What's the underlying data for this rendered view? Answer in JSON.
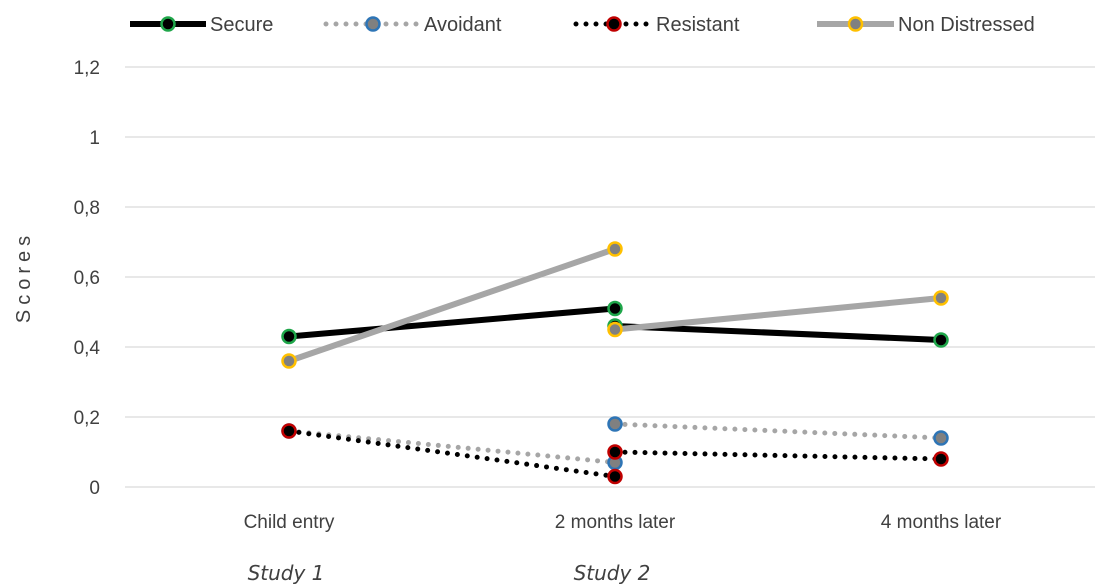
{
  "chart_data": {
    "type": "line",
    "ylabel": "Scores",
    "xlabel": "",
    "ylim": [
      0,
      1.2
    ],
    "yticks": [
      "0",
      "0,2",
      "0,4",
      "0,6",
      "0,8",
      "1",
      "1,2"
    ],
    "ytick_values": [
      0,
      0.2,
      0.4,
      0.6,
      0.8,
      1.0,
      1.2
    ],
    "categories": [
      "Child entry",
      "2 months later",
      "4 months later"
    ],
    "groups": [
      {
        "label": "Study 1",
        "under": "Child entry"
      },
      {
        "label": "Study 2",
        "under": "2 months later"
      }
    ],
    "grid": true,
    "legend_position": "top",
    "series": [
      {
        "name": "Secure",
        "style": "solid",
        "line_color": "#000000",
        "marker_fill": "#000000",
        "marker_edge": "#1fa64a",
        "segments": [
          [
            {
              "x": "Child entry",
              "y": 0.43
            },
            {
              "x": "2 months later",
              "y": 0.51
            }
          ],
          [
            {
              "x": "2 months later",
              "y": 0.46
            },
            {
              "x": "4 months later",
              "y": 0.42
            }
          ]
        ]
      },
      {
        "name": "Avoidant",
        "style": "dotted",
        "line_color": "#a6a6a6",
        "marker_fill": "#808080",
        "marker_edge": "#2e75b6",
        "segments": [
          [
            {
              "x": "Child entry",
              "y": 0.16
            },
            {
              "x": "2 months later",
              "y": 0.07
            }
          ],
          [
            {
              "x": "2 months later",
              "y": 0.18
            },
            {
              "x": "4 months later",
              "y": 0.14
            }
          ]
        ]
      },
      {
        "name": "Resistant",
        "style": "dotted",
        "line_color": "#000000",
        "marker_fill": "#000000",
        "marker_edge": "#c00000",
        "segments": [
          [
            {
              "x": "Child entry",
              "y": 0.16
            },
            {
              "x": "2 months later",
              "y": 0.03
            }
          ],
          [
            {
              "x": "2 months later",
              "y": 0.1
            },
            {
              "x": "4 months later",
              "y": 0.08
            }
          ]
        ]
      },
      {
        "name": "Non Distressed",
        "style": "solid",
        "line_color": "#a6a6a6",
        "marker_fill": "#808080",
        "marker_edge": "#ffc000",
        "segments": [
          [
            {
              "x": "Child entry",
              "y": 0.36
            },
            {
              "x": "2 months later",
              "y": 0.68
            }
          ],
          [
            {
              "x": "2 months later",
              "y": 0.45
            },
            {
              "x": "4 months later",
              "y": 0.54
            }
          ]
        ]
      }
    ]
  }
}
